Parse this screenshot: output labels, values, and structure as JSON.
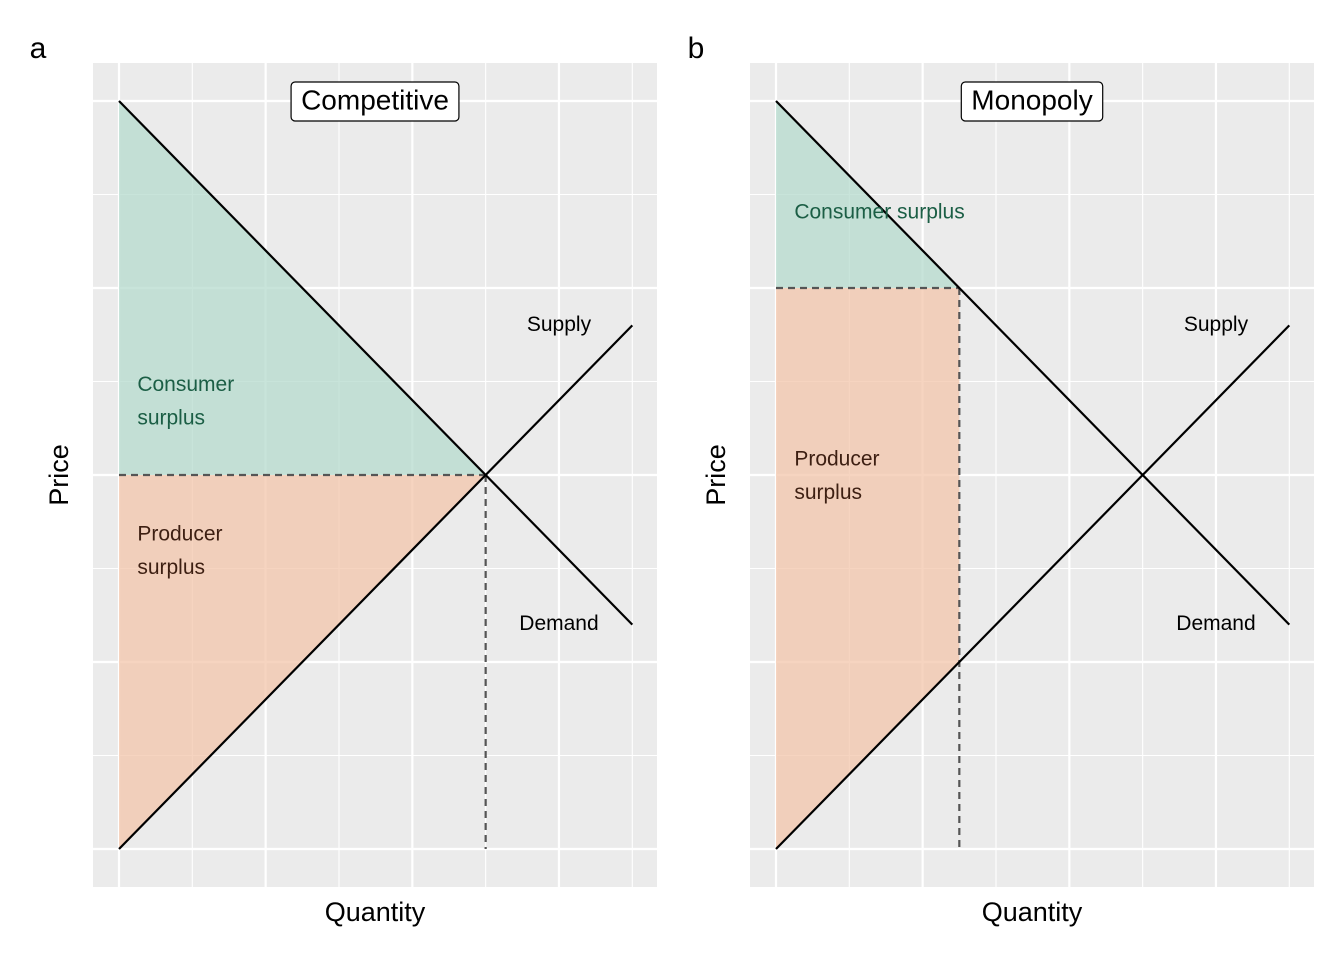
{
  "colors": {
    "panel_bg": "#ebebeb",
    "grid": "#ffffff",
    "consumer_fill": "#b3d9cc",
    "producer_fill": "#f2c4a8",
    "consumer_text": "#1b5e45",
    "producer_text": "#3d1f12",
    "line": "#000000",
    "dash": "#555555"
  },
  "chart_data": [
    {
      "type": "line",
      "panel_tag": "a",
      "title": "Competitive",
      "xlabel": "Quantity",
      "ylabel": "Price",
      "xlim": [
        0,
        7
      ],
      "ylim": [
        0,
        10
      ],
      "grid": true,
      "series": [
        {
          "name": "Demand",
          "x": [
            0,
            7
          ],
          "y": [
            10,
            3
          ]
        },
        {
          "name": "Supply",
          "x": [
            0,
            7
          ],
          "y": [
            0,
            7
          ]
        }
      ],
      "series_labels": [
        {
          "text": "Supply",
          "x": 6.0,
          "y": 7.0
        },
        {
          "text": "Demand",
          "x": 6.0,
          "y": 3.0
        }
      ],
      "reference_lines": {
        "price": 5,
        "quantity": 5
      },
      "areas": [
        {
          "name": "Consumer surplus",
          "lines": [
            "Consumer",
            "surplus"
          ],
          "polygon": [
            [
              0,
              10
            ],
            [
              5,
              5
            ],
            [
              0,
              5
            ]
          ],
          "label_x": 0.25,
          "label_y": [
            6.2,
            5.75
          ]
        },
        {
          "name": "Producer surplus",
          "lines": [
            "Producer",
            "surplus"
          ],
          "polygon": [
            [
              0,
              5
            ],
            [
              5,
              5
            ],
            [
              0,
              0
            ]
          ],
          "label_x": 0.25,
          "label_y": [
            4.2,
            3.75
          ]
        }
      ]
    },
    {
      "type": "line",
      "panel_tag": "b",
      "title": "Monopoly",
      "xlabel": "Quantity",
      "ylabel": "Price",
      "xlim": [
        0,
        7
      ],
      "ylim": [
        0,
        10
      ],
      "grid": true,
      "series": [
        {
          "name": "Demand",
          "x": [
            0,
            7
          ],
          "y": [
            10,
            3
          ]
        },
        {
          "name": "Supply",
          "x": [
            0,
            7
          ],
          "y": [
            0,
            7
          ]
        }
      ],
      "series_labels": [
        {
          "text": "Supply",
          "x": 6.0,
          "y": 7.0
        },
        {
          "text": "Demand",
          "x": 6.0,
          "y": 3.0
        }
      ],
      "reference_lines": {
        "price": 7.5,
        "quantity": 2.5
      },
      "areas": [
        {
          "name": "Consumer surplus",
          "lines": [
            "Consumer surplus"
          ],
          "polygon": [
            [
              0,
              10
            ],
            [
              2.5,
              7.5
            ],
            [
              0,
              7.5
            ]
          ],
          "label_x": 0.25,
          "label_y": [
            8.5
          ]
        },
        {
          "name": "Producer surplus",
          "lines": [
            "Producer",
            "surplus"
          ],
          "polygon": [
            [
              0,
              7.5
            ],
            [
              2.5,
              7.5
            ],
            [
              2.5,
              2.5
            ],
            [
              0,
              0
            ]
          ],
          "label_x": 0.25,
          "label_y": [
            5.2,
            4.75
          ]
        }
      ]
    }
  ]
}
